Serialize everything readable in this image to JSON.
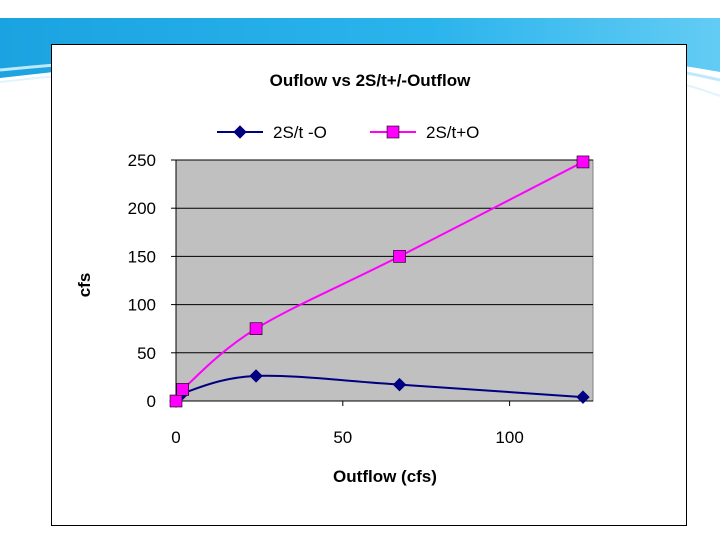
{
  "chart_data": {
    "type": "scatter",
    "title": "Ouflow vs 2S/t+/-Outflow",
    "xlabel": "Outflow (cfs)",
    "ylabel": "cfs",
    "xlim": [
      0,
      125
    ],
    "ylim": [
      0,
      250
    ],
    "xticks": [
      0,
      50,
      100
    ],
    "yticks": [
      0,
      50,
      100,
      150,
      200,
      250
    ],
    "grid": "horizontal major gridlines",
    "plot_background": "#c0c0c0",
    "legend_position": "top",
    "series": [
      {
        "name": "2S/t -O",
        "color": "#000080",
        "marker": "diamond",
        "line": "smooth",
        "points": [
          [
            0,
            0
          ],
          [
            2,
            8
          ],
          [
            24,
            26
          ],
          [
            67,
            17
          ],
          [
            122,
            4
          ]
        ]
      },
      {
        "name": "2S/t+O",
        "color": "#ff00ff",
        "marker": "square",
        "line": "smooth",
        "points": [
          [
            0,
            0
          ],
          [
            2,
            12
          ],
          [
            24,
            75
          ],
          [
            67,
            150
          ],
          [
            122,
            248
          ]
        ]
      }
    ]
  }
}
